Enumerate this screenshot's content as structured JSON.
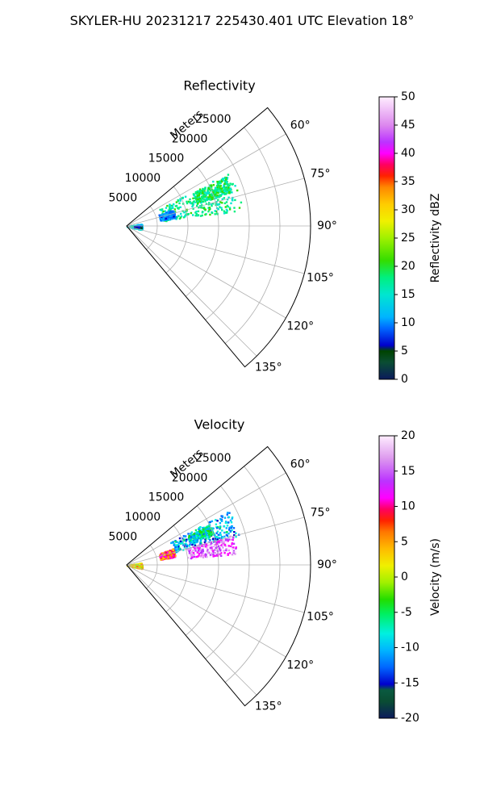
{
  "figure": {
    "title": "SKYLER-HU  20231217  225430.401 UTC Elevation 18°"
  },
  "chart_data": [
    {
      "type": "polar-sector",
      "title": "Reflectivity",
      "radial_label": "Meters",
      "radial_ticks": [
        "5000",
        "10000",
        "15000",
        "20000",
        "25000"
      ],
      "radial_range": [
        0,
        30000
      ],
      "angular_ticks": [
        "60°",
        "75°",
        "90°",
        "105°",
        "120°",
        "135°"
      ],
      "angular_range_deg": [
        50,
        140
      ],
      "grid": true,
      "colorbar": {
        "label": "Reflectivity dBZ",
        "range": [
          0,
          50
        ],
        "ticks": [
          "0",
          "5",
          "10",
          "15",
          "20",
          "25",
          "30",
          "35",
          "40",
          "45",
          "50"
        ]
      },
      "echo_regions": [
        {
          "azimuth_deg": [
            62,
            82
          ],
          "range_m": [
            6000,
            19000
          ],
          "value": 17
        },
        {
          "azimuth_deg": [
            70,
            80
          ],
          "range_m": [
            5500,
            8000
          ],
          "value": 10
        },
        {
          "azimuth_deg": [
            63,
            72
          ],
          "range_m": [
            12000,
            18000
          ],
          "value": 18
        },
        {
          "azimuth_deg": [
            80,
            103
          ],
          "range_m": [
            0,
            2500
          ],
          "value": 14
        },
        {
          "azimuth_deg": [
            88,
            96
          ],
          "range_m": [
            1200,
            2300
          ],
          "value": 5
        }
      ]
    },
    {
      "type": "polar-sector",
      "title": "Velocity",
      "radial_label": "Meters",
      "radial_ticks": [
        "5000",
        "10000",
        "15000",
        "20000",
        "25000"
      ],
      "radial_range": [
        0,
        30000
      ],
      "angular_ticks": [
        "60°",
        "75°",
        "90°",
        "105°",
        "120°",
        "135°"
      ],
      "angular_range_deg": [
        50,
        140
      ],
      "grid": true,
      "colorbar": {
        "label": "Velocity (m/s)",
        "range": [
          -20,
          20
        ],
        "ticks": [
          "-20",
          "-15",
          "-10",
          "-5",
          "0",
          "5",
          "10",
          "15",
          "20"
        ]
      },
      "echo_regions": [
        {
          "azimuth_deg": [
            62,
            75
          ],
          "range_m": [
            8000,
            19000
          ],
          "value": -12
        },
        {
          "azimuth_deg": [
            74,
            84
          ],
          "range_m": [
            10000,
            18000
          ],
          "value": 16
        },
        {
          "azimuth_deg": [
            70,
            80
          ],
          "range_m": [
            5500,
            8000
          ],
          "value": 8
        },
        {
          "azimuth_deg": [
            80,
            103
          ],
          "range_m": [
            0,
            2500
          ],
          "value": 2
        },
        {
          "azimuth_deg": [
            64,
            70
          ],
          "range_m": [
            11000,
            15000
          ],
          "value": -9
        }
      ]
    }
  ]
}
